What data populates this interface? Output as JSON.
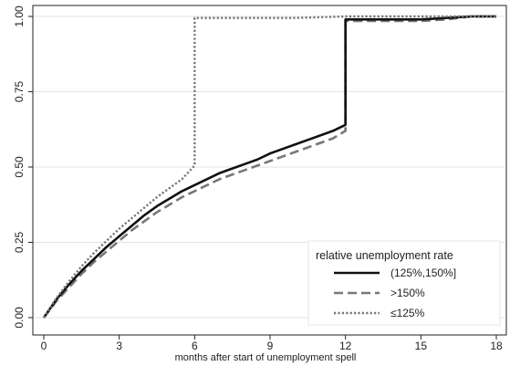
{
  "chart_data": {
    "type": "line",
    "xlabel": "months after start of unemployment spell",
    "ylabel": "",
    "xlim": [
      0,
      18
    ],
    "ylim": [
      0,
      1
    ],
    "x_ticks": [
      0,
      3,
      6,
      9,
      12,
      15,
      18
    ],
    "x_tick_labels": [
      "0",
      "3",
      "6",
      "9",
      "12",
      "15",
      "18"
    ],
    "y_ticks": [
      0,
      0.25,
      0.5,
      0.75,
      1
    ],
    "y_tick_labels": [
      "0.00",
      "0.25",
      "0.50",
      "0.75",
      "1.00"
    ],
    "grid": "horizontal",
    "legend": {
      "title": "relative unemployment rate",
      "placement": "bottom-right"
    },
    "series": [
      {
        "name": "(125%,150%]",
        "style": "solid",
        "color": "#111111",
        "x": [
          0,
          0.5,
          1,
          1.5,
          2,
          2.5,
          3,
          3.5,
          4,
          4.5,
          5,
          5.5,
          6,
          6.5,
          7,
          7.5,
          8,
          8.5,
          9,
          9.5,
          10,
          10.5,
          11,
          11.5,
          12,
          12,
          13,
          14,
          15,
          16,
          17,
          18
        ],
        "y": [
          0,
          0.06,
          0.11,
          0.155,
          0.195,
          0.235,
          0.27,
          0.305,
          0.34,
          0.37,
          0.395,
          0.42,
          0.44,
          0.46,
          0.48,
          0.495,
          0.51,
          0.525,
          0.545,
          0.56,
          0.575,
          0.59,
          0.605,
          0.62,
          0.64,
          0.99,
          0.99,
          0.99,
          0.99,
          0.995,
          1.0,
          1.0
        ]
      },
      {
        "name": ">150%",
        "style": "dashed",
        "color": "#777777",
        "x": [
          0,
          0.5,
          1,
          1.5,
          2,
          2.5,
          3,
          3.5,
          4,
          4.5,
          5,
          5.5,
          6,
          6.5,
          7,
          7.5,
          8,
          8.5,
          9,
          9.5,
          10,
          10.5,
          11,
          11.5,
          12,
          12,
          13,
          14,
          15,
          16,
          17,
          18
        ],
        "y": [
          0,
          0.055,
          0.1,
          0.145,
          0.185,
          0.22,
          0.255,
          0.29,
          0.32,
          0.35,
          0.375,
          0.4,
          0.42,
          0.44,
          0.46,
          0.475,
          0.49,
          0.505,
          0.52,
          0.535,
          0.55,
          0.565,
          0.58,
          0.595,
          0.62,
          0.985,
          0.985,
          0.985,
          0.985,
          0.99,
          1.0,
          1.0
        ]
      },
      {
        "name": "≤125%",
        "style": "dotted",
        "color": "#777777",
        "x": [
          0,
          0.5,
          1,
          1.5,
          2,
          2.5,
          3,
          3.5,
          4,
          4.5,
          5,
          5.5,
          6,
          6,
          8,
          10,
          12,
          14,
          16,
          18
        ],
        "y": [
          0,
          0.065,
          0.12,
          0.17,
          0.215,
          0.255,
          0.295,
          0.33,
          0.365,
          0.4,
          0.43,
          0.46,
          0.505,
          0.995,
          0.995,
          0.995,
          1.0,
          1.0,
          1.0,
          1.0
        ]
      }
    ]
  }
}
